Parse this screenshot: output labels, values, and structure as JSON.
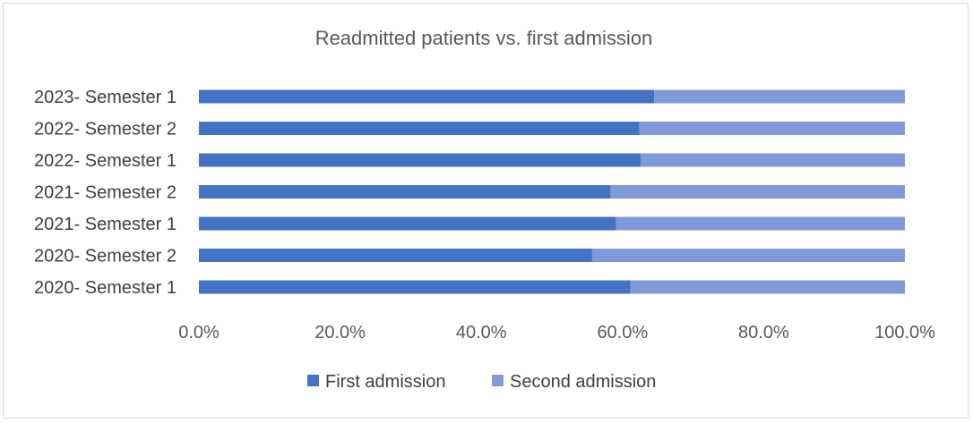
{
  "chart_data": {
    "type": "bar",
    "orientation": "horizontal",
    "stacked": true,
    "percent_stacked": true,
    "title": "Readmitted patients vs. first admission",
    "categories": [
      "2020- Semester 1",
      "2020- Semester 2",
      "2021- Semester 1",
      "2021- Semester 2",
      "2022- Semester 1",
      "2022- Semester 2",
      "2023- Semester 1"
    ],
    "series": [
      {
        "name": "First admission",
        "color": "#4472c4",
        "values": [
          61.1,
          55.7,
          59.1,
          58.3,
          62.6,
          62.4,
          64.5
        ]
      },
      {
        "name": "Second admission",
        "color": "#7f9ad6",
        "values": [
          38.9,
          44.3,
          40.9,
          41.7,
          37.4,
          37.6,
          35.5
        ]
      }
    ],
    "xlim": [
      0,
      100
    ],
    "x_ticks": [
      "0.0%",
      "20.0%",
      "40.0%",
      "60.0%",
      "80.0%",
      "100.0%"
    ],
    "grid": false,
    "legend_position": "bottom"
  }
}
